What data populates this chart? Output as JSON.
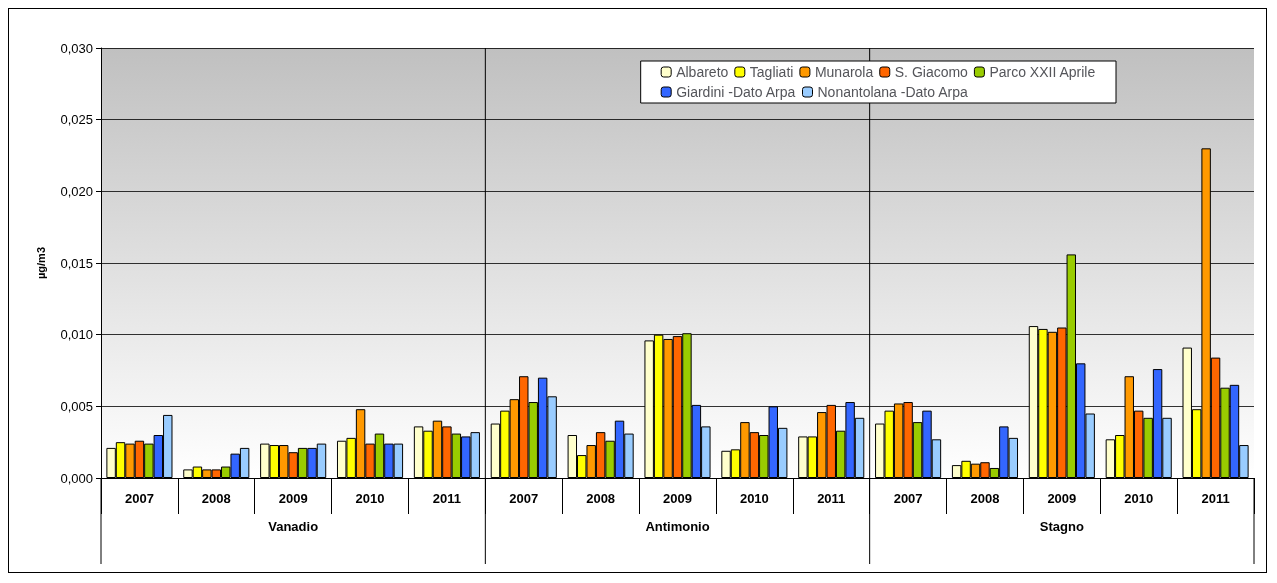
{
  "chart_data": {
    "type": "bar",
    "ylabel": "µg/m3",
    "categories": [
      "2007",
      "2008",
      "2009",
      "2010",
      "2011",
      "2007",
      "2008",
      "2009",
      "2010",
      "2011",
      "2007",
      "2008",
      "2009",
      "2010",
      "2011"
    ],
    "annotations": [
      "Vanadio",
      "Antimonio",
      "Stagno"
    ],
    "series": [
      {
        "name": "Albareto",
        "color": "#ffffcc",
        "values": [
          0.0021,
          0.0006,
          0.0024,
          0.0026,
          0.0036,
          0.0038,
          0.003,
          0.0096,
          0.0019,
          0.0029,
          0.0038,
          0.0009,
          0.0106,
          0.0027,
          0.0091
        ]
      },
      {
        "name": "Tagliati",
        "color": "#ffff00",
        "values": [
          0.0025,
          0.0008,
          0.0023,
          0.0028,
          0.0033,
          0.0047,
          0.0016,
          0.01,
          0.002,
          0.0029,
          0.0047,
          0.0012,
          0.0104,
          0.003,
          0.0048
        ]
      },
      {
        "name": "Munarola",
        "color": "#ff9900",
        "values": [
          0.0024,
          0.0006,
          0.0023,
          0.0048,
          0.004,
          0.0055,
          0.0023,
          0.0097,
          0.0039,
          0.0046,
          0.0052,
          0.001,
          0.0102,
          0.0071,
          0.023
        ]
      },
      {
        "name": "S. Giacomo",
        "color": "#ff6600",
        "values": [
          0.0026,
          0.0006,
          0.0018,
          0.0024,
          0.0036,
          0.0071,
          0.0032,
          0.0099,
          0.0032,
          0.0051,
          0.0053,
          0.0011,
          0.0105,
          0.0047,
          0.0084
        ]
      },
      {
        "name": "Parco XXII Aprile",
        "color": "#99cc00",
        "values": [
          0.0024,
          0.0008,
          0.0021,
          0.0031,
          0.0031,
          0.0053,
          0.0026,
          0.0101,
          0.003,
          0.0033,
          0.0039,
          0.0007,
          0.0156,
          0.0042,
          0.0063
        ]
      },
      {
        "name": "Giardini -Dato Arpa",
        "color": "#3366ff",
        "values": [
          0.003,
          0.0017,
          0.0021,
          0.0024,
          0.0029,
          0.007,
          0.004,
          0.0051,
          0.005,
          0.0053,
          0.0047,
          0.0036,
          0.008,
          0.0076,
          0.0065
        ]
      },
      {
        "name": "Nonantolana -Dato Arpa",
        "color": "#99ccff",
        "values": [
          0.0044,
          0.0021,
          0.0024,
          0.0024,
          0.0032,
          0.0057,
          0.0031,
          0.0036,
          0.0035,
          0.0042,
          0.0027,
          0.0028,
          0.0045,
          0.0042,
          0.0023
        ]
      }
    ],
    "ylim": [
      0,
      0.03
    ],
    "yticks": [
      {
        "value": 0,
        "label": "0,000"
      },
      {
        "value": 0.005,
        "label": "0,005"
      },
      {
        "value": 0.01,
        "label": "0,010"
      },
      {
        "value": 0.015,
        "label": "0,015"
      },
      {
        "value": 0.02,
        "label": "0,020"
      },
      {
        "value": 0.025,
        "label": "0,025"
      },
      {
        "value": 0.03,
        "label": "0,030"
      }
    ],
    "grid": "y",
    "legend": "top right"
  }
}
